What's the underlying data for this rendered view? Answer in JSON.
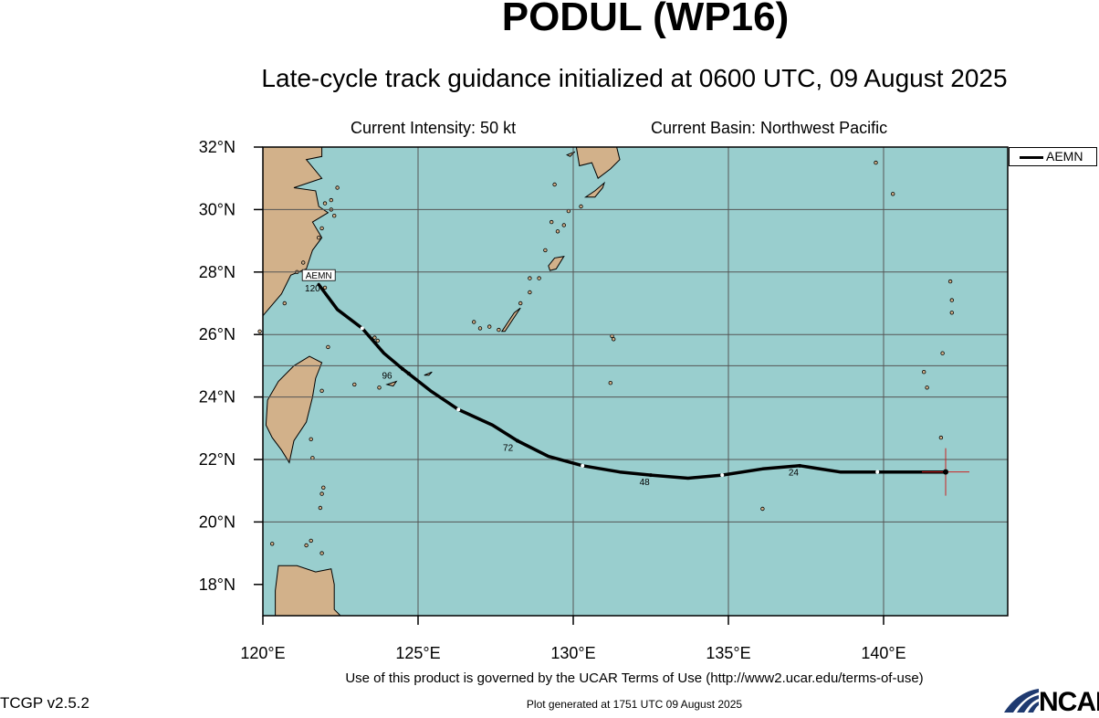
{
  "header": {
    "title": "PODUL (WP16)",
    "subtitle": "Late-cycle track guidance initialized at 0600 UTC, 09 August 2025",
    "intensity": "Current Intensity: 50 kt",
    "basin": "Current Basin: Northwest Pacific"
  },
  "legend": {
    "label": "AEMN"
  },
  "map": {
    "lon_range": [
      120,
      144
    ],
    "lat_range": [
      17,
      32
    ],
    "lon_ticks": [
      "120°E",
      "125°E",
      "130°E",
      "135°E",
      "140°E"
    ],
    "lat_ticks": [
      "18°N",
      "20°N",
      "22°N",
      "24°N",
      "26°N",
      "28°N",
      "30°N",
      "32°N"
    ],
    "ocean_color": "#99cece",
    "land_color": "#d2b18a",
    "track": {
      "name": "AEMN",
      "points": [
        [
          142.0,
          21.6
        ],
        [
          139.8,
          21.6
        ],
        [
          138.6,
          21.6
        ],
        [
          137.3,
          21.8
        ],
        [
          136.1,
          21.7
        ],
        [
          134.8,
          21.5
        ],
        [
          133.7,
          21.4
        ],
        [
          132.5,
          21.5
        ],
        [
          131.5,
          21.6
        ],
        [
          130.3,
          21.8
        ],
        [
          129.2,
          22.1
        ],
        [
          128.2,
          22.6
        ],
        [
          127.4,
          23.1
        ],
        [
          126.3,
          23.6
        ],
        [
          125.4,
          24.2
        ],
        [
          124.5,
          24.9
        ],
        [
          123.9,
          25.4
        ],
        [
          123.2,
          26.2
        ],
        [
          122.4,
          26.8
        ],
        [
          121.8,
          27.6
        ]
      ],
      "tau_labels": [
        {
          "text": "24",
          "lon": 137.1,
          "lat": 21.6
        },
        {
          "text": "48",
          "lon": 132.3,
          "lat": 21.3
        },
        {
          "text": "72",
          "lon": 127.9,
          "lat": 22.4
        },
        {
          "text": "96",
          "lon": 124.0,
          "lat": 24.7
        },
        {
          "text": "120",
          "lon": 121.6,
          "lat": 27.5
        }
      ],
      "end_label": "AEMN",
      "initial_position": [
        142.0,
        21.6
      ]
    }
  },
  "footer": {
    "terms": "Use of this product is governed by the UCAR Terms of Use (http://www2.ucar.edu/terms-of-use)",
    "version": "TCGP v2.5.2",
    "generated": "Plot generated at 1751 UTC   09 August 2025",
    "logo_text": "NCAR"
  }
}
